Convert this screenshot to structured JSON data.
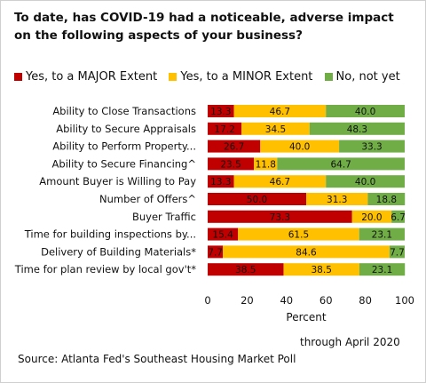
{
  "chart_data": {
    "type": "bar",
    "orientation": "horizontal",
    "stacked": true,
    "title": "To date, has COVID-19 had a noticeable, adverse impact on the following aspects of your business?",
    "xlabel": "Percent",
    "ylabel": "",
    "xlim": [
      0,
      100
    ],
    "xticks": [
      0,
      20,
      40,
      60,
      80,
      100
    ],
    "grid": false,
    "legend_position": "top",
    "categories": [
      "Ability to Close Transactions",
      "Ability to Secure Appraisals",
      "Ability to Perform Property...",
      "Ability to Secure Financing^",
      "Amount Buyer is Willing to Pay",
      "Number of Offers^",
      "Buyer Traffic",
      "Time for building inspections by...",
      "Delivery of Building Materials*",
      "Time for plan review by local gov't*"
    ],
    "series": [
      {
        "name": "Yes, to a MAJOR Extent",
        "color": "#c00000",
        "values": [
          13.3,
          17.2,
          26.7,
          23.5,
          13.3,
          50.0,
          73.3,
          15.4,
          7.7,
          38.5
        ],
        "labels": [
          "13.3",
          "17.2",
          "26.7",
          "23.5",
          "13.3",
          "50.0",
          "73.3",
          "15.4",
          "7.7",
          "38.5"
        ]
      },
      {
        "name": "Yes, to a MINOR Extent",
        "color": "#ffc000",
        "values": [
          46.7,
          34.5,
          40.0,
          11.8,
          46.7,
          31.3,
          20.0,
          61.5,
          84.6,
          38.5
        ],
        "labels": [
          "46.7",
          "34.5",
          "40.0",
          "11.8",
          "46.7",
          "31.3",
          "20.0",
          "61.5",
          "84.6",
          "38.5"
        ]
      },
      {
        "name": "No, not yet",
        "color": "#70ad47",
        "values": [
          40.0,
          48.3,
          33.3,
          64.7,
          40.0,
          18.8,
          6.7,
          23.1,
          7.7,
          23.1
        ],
        "labels": [
          "40.0",
          "48.3",
          "33.3",
          "64.7",
          "40.0",
          "18.8",
          "6.7",
          "23.1",
          "7.7",
          "23.1"
        ]
      }
    ]
  },
  "notes": {
    "date": "through April 2020",
    "source": "Source: Atlanta Fed's Southeast Housing Market Poll"
  }
}
